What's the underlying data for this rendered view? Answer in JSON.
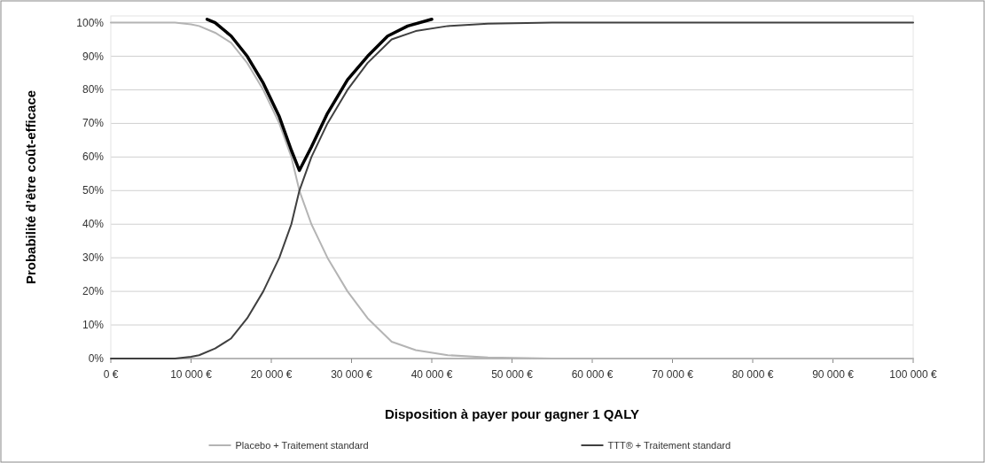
{
  "chart_data": {
    "type": "line",
    "xlabel": "Disposition à payer pour gagner 1 QALY",
    "ylabel": "Probabilité d’être coût-efficace",
    "xlim": [
      0,
      100000
    ],
    "ylim": [
      0,
      102
    ],
    "xticks": [
      {
        "value": 0,
        "label": "0 €"
      },
      {
        "value": 10000,
        "label": "10 000 €"
      },
      {
        "value": 20000,
        "label": "20 000 €"
      },
      {
        "value": 30000,
        "label": "30 000 €"
      },
      {
        "value": 40000,
        "label": "40 000 €"
      },
      {
        "value": 50000,
        "label": "50 000 €"
      },
      {
        "value": 60000,
        "label": "60 000 €"
      },
      {
        "value": 70000,
        "label": "70 000 €"
      },
      {
        "value": 80000,
        "label": "80 000 €"
      },
      {
        "value": 90000,
        "label": "90 000 €"
      },
      {
        "value": 100000,
        "label": "100 000 €"
      }
    ],
    "yticks": [
      {
        "value": 0,
        "label": "0%"
      },
      {
        "value": 10,
        "label": "10%"
      },
      {
        "value": 20,
        "label": "20%"
      },
      {
        "value": 30,
        "label": "30%"
      },
      {
        "value": 40,
        "label": "40%"
      },
      {
        "value": 50,
        "label": "50%"
      },
      {
        "value": 60,
        "label": "60%"
      },
      {
        "value": 70,
        "label": "70%"
      },
      {
        "value": 80,
        "label": "80%"
      },
      {
        "value": 90,
        "label": "90%"
      },
      {
        "value": 100,
        "label": "100%"
      }
    ],
    "grid": "y",
    "legend": "bottom",
    "marker": "none",
    "series": [
      {
        "name": "Placebo + Traitement standard",
        "color": "#b4b4b4",
        "x": [
          0,
          8000,
          10000,
          11000,
          13000,
          15000,
          17000,
          19000,
          21000,
          22500,
          23500,
          25000,
          27000,
          29500,
          32000,
          35000,
          38000,
          42000,
          47000,
          55000,
          100000
        ],
        "values": [
          100,
          100,
          99.5,
          99,
          97,
          94,
          88,
          80,
          70,
          60,
          50,
          40,
          30,
          20,
          12,
          5,
          2.5,
          1,
          0.3,
          0,
          0
        ]
      },
      {
        "name": "TTT® + Traitement standard",
        "color": "#404040",
        "x": [
          0,
          8000,
          10000,
          11000,
          13000,
          15000,
          17000,
          19000,
          21000,
          22500,
          23500,
          25000,
          27000,
          29500,
          32000,
          35000,
          38000,
          42000,
          47000,
          55000,
          100000
        ],
        "values": [
          0,
          0,
          0.5,
          1,
          3,
          6,
          12,
          20,
          30,
          40,
          50,
          60,
          70,
          80,
          88,
          95,
          97.5,
          99,
          99.7,
          100,
          100
        ]
      },
      {
        "color": "#000000",
        "x": [
          12000,
          13000,
          15000,
          17000,
          19000,
          21000,
          22500,
          23500,
          25000,
          27000,
          29500,
          32000,
          34500,
          37000,
          40000
        ],
        "values": [
          101,
          100,
          96,
          90,
          82,
          72,
          62,
          56,
          63,
          73,
          83,
          90,
          96,
          99,
          101
        ]
      }
    ]
  }
}
